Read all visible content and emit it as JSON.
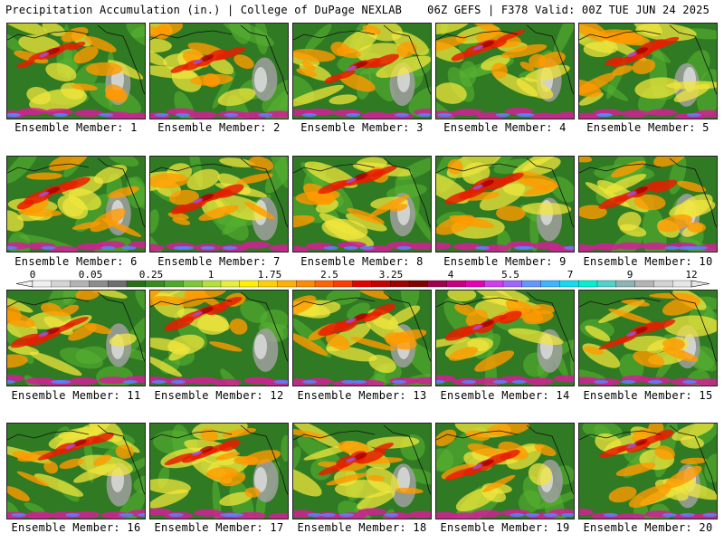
{
  "header": {
    "title_left": "Precipitation Accumulation (in.) | College of DuPage NEXLAB",
    "title_right": "06Z GEFS | F378 Valid: 00Z TUE JUN 24 2025"
  },
  "panel_label_prefix": "Ensemble Member:",
  "members": [
    1,
    2,
    3,
    4,
    5,
    6,
    7,
    8,
    9,
    10,
    11,
    12,
    13,
    14,
    15,
    16,
    17,
    18,
    19,
    20
  ],
  "colorbar": {
    "tick_labels": [
      "0",
      "0.05",
      "0.25",
      "1",
      "1.75",
      "2.5",
      "3.25",
      "4",
      "5.5",
      "7",
      "9",
      "12"
    ],
    "colors": [
      "#f0f0f0",
      "#d4d4d4",
      "#b4b4b4",
      "#8c8c8c",
      "#6e6e6e",
      "#2a6e1c",
      "#3a8a22",
      "#4fa82c",
      "#7cc83a",
      "#b4e03c",
      "#e6f03c",
      "#fff000",
      "#ffd000",
      "#ffb000",
      "#ff8c00",
      "#ff6400",
      "#ff3c00",
      "#e60000",
      "#c80000",
      "#a00000",
      "#800000",
      "#a0004c",
      "#c8007c",
      "#e600b4",
      "#d23cf0",
      "#a064ff",
      "#6496ff",
      "#3cb4ff",
      "#14dcf0",
      "#00f0d2",
      "#50d2c8",
      "#8cb4b4",
      "#b4b4b4",
      "#d2d2d2",
      "#e6e6e6"
    ]
  },
  "map_palette": {
    "ocean_green": "#2f7a22",
    "light_green": "#58b032",
    "yellow": "#f0e63c",
    "orange": "#ff9a00",
    "red": "#e61e00",
    "dark_red": "#a80000",
    "magenta": "#d21e96",
    "purple": "#a050e6",
    "blue": "#5a82ff",
    "gray": "#a0a0a0",
    "light_gray": "#dcdcdc"
  }
}
